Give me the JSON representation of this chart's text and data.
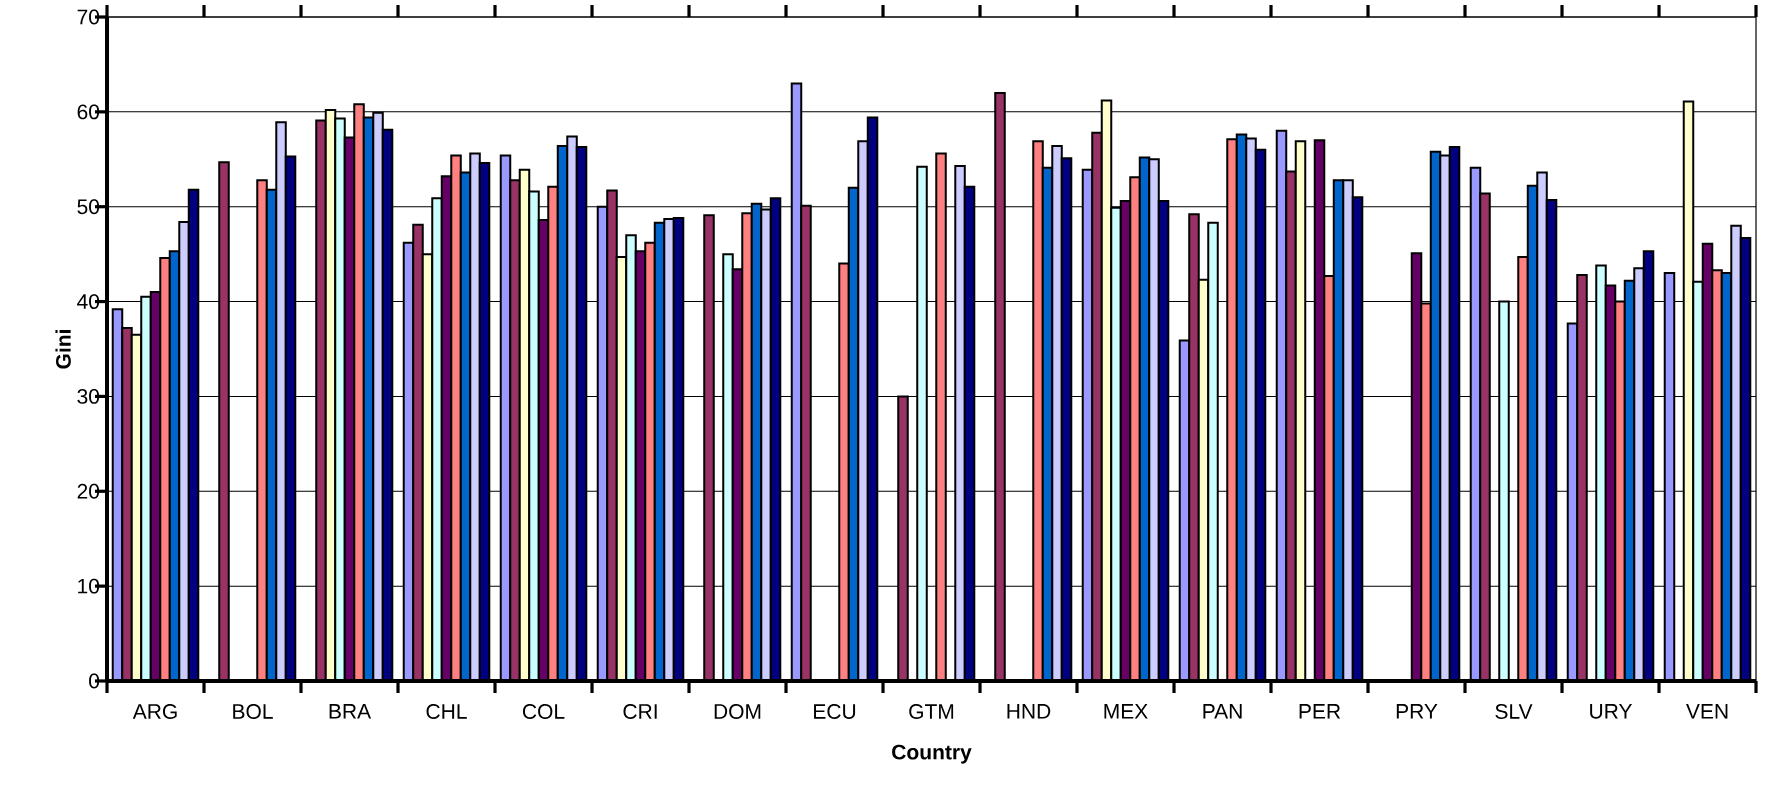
{
  "chart_data": {
    "type": "bar",
    "xlabel": "Country",
    "ylabel": "Gini",
    "categories": [
      "ARG",
      "BOL",
      "BRA",
      "CHL",
      "COL",
      "CRI",
      "DOM",
      "ECU",
      "GTM",
      "HND",
      "MEX",
      "PAN",
      "PER",
      "PRY",
      "SLV",
      "URY",
      "VEN"
    ],
    "series": [
      {
        "color": "#9999ff",
        "values": [
          39.2,
          null,
          null,
          46.2,
          55.4,
          50.0,
          null,
          63.0,
          null,
          null,
          53.9,
          35.9,
          58.0,
          null,
          54.1,
          37.7,
          43.0
        ]
      },
      {
        "color": "#993366",
        "values": [
          37.2,
          54.7,
          59.1,
          48.1,
          52.8,
          51.7,
          49.1,
          50.1,
          30.0,
          62.0,
          57.8,
          49.2,
          53.7,
          null,
          51.4,
          42.8,
          null
        ]
      },
      {
        "color": "#ffffcc",
        "values": [
          36.5,
          null,
          60.2,
          45.0,
          53.9,
          44.7,
          null,
          null,
          null,
          null,
          61.2,
          42.3,
          56.9,
          null,
          null,
          null,
          61.1
        ]
      },
      {
        "color": "#ccffff",
        "values": [
          40.5,
          null,
          59.3,
          50.9,
          51.6,
          47.0,
          45.0,
          null,
          54.2,
          null,
          49.9,
          48.3,
          null,
          null,
          40.0,
          43.8,
          42.1
        ]
      },
      {
        "color": "#660066",
        "values": [
          41.0,
          null,
          57.3,
          53.2,
          48.6,
          45.3,
          43.4,
          null,
          null,
          null,
          50.6,
          null,
          57.0,
          45.1,
          null,
          41.7,
          46.1
        ]
      },
      {
        "color": "#ff8080",
        "values": [
          44.6,
          52.8,
          60.8,
          55.4,
          52.1,
          46.2,
          49.3,
          44.0,
          55.6,
          56.9,
          53.1,
          57.1,
          42.7,
          39.8,
          44.7,
          40.0,
          43.3
        ]
      },
      {
        "color": "#0066cc",
        "values": [
          45.3,
          51.8,
          59.4,
          53.6,
          56.4,
          48.3,
          50.3,
          52.0,
          null,
          54.1,
          55.2,
          57.6,
          52.8,
          55.8,
          52.2,
          42.2,
          43.0
        ]
      },
      {
        "color": "#ccccff",
        "values": [
          48.4,
          58.9,
          59.9,
          55.6,
          57.4,
          48.7,
          49.7,
          56.9,
          54.3,
          56.4,
          55.0,
          57.2,
          52.8,
          55.4,
          53.6,
          43.5,
          48.0
        ]
      },
      {
        "color": "#000080",
        "values": [
          51.8,
          55.3,
          58.1,
          54.6,
          56.3,
          48.8,
          50.9,
          59.4,
          52.1,
          55.1,
          50.6,
          56.0,
          51.0,
          56.3,
          50.7,
          45.3,
          46.7
        ]
      }
    ],
    "ylim": [
      0,
      70
    ],
    "yticks": [
      0,
      10,
      20,
      30,
      40,
      50,
      60,
      70
    ],
    "grid": "y"
  }
}
